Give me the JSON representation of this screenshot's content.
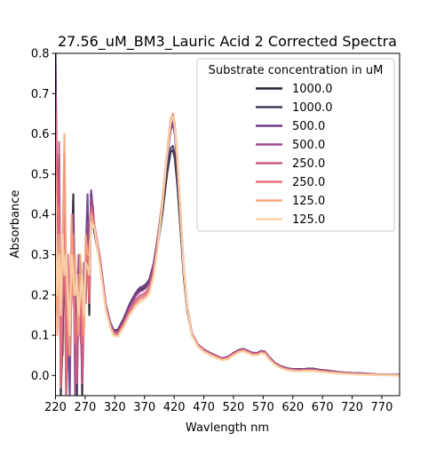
{
  "chart_data": {
    "type": "line",
    "title": "27.56_uM_BM3_Lauric Acid 2 Corrected Spectra",
    "xlabel": "Wavlength nm",
    "ylabel": "Absorbance",
    "xlim": [
      220,
      800
    ],
    "ylim": [
      -0.05,
      0.8
    ],
    "xticks": [
      "220",
      "270",
      "320",
      "370",
      "420",
      "470",
      "520",
      "570",
      "620",
      "670",
      "720",
      "770"
    ],
    "yticks": [
      "0.0",
      "0.1",
      "0.2",
      "0.3",
      "0.4",
      "0.5",
      "0.6",
      "0.7",
      "0.8"
    ],
    "grid": false,
    "legend": {
      "title": "Substrate concentration in uM",
      "placement": "upper-right"
    },
    "x": [
      285,
      295,
      305,
      312,
      318,
      325,
      335,
      345,
      355,
      362,
      368,
      373,
      378,
      385,
      392,
      400,
      408,
      414,
      418,
      421,
      425,
      430,
      436,
      442,
      450,
      460,
      470,
      480,
      490,
      500,
      510,
      520,
      530,
      537,
      545,
      552,
      560,
      567,
      573,
      580,
      590,
      600,
      610,
      620,
      630,
      640,
      648,
      655,
      665,
      680,
      700,
      720,
      740,
      760,
      780,
      800
    ],
    "series": [
      {
        "name": "1000.0",
        "color": "#231c2a",
        "values": [
          0.36,
          0.28,
          0.17,
          0.13,
          0.112,
          0.112,
          0.14,
          0.175,
          0.2,
          0.212,
          0.215,
          0.22,
          0.23,
          0.265,
          0.32,
          0.4,
          0.5,
          0.555,
          0.56,
          0.54,
          0.48,
          0.38,
          0.25,
          0.16,
          0.1,
          0.075,
          0.063,
          0.055,
          0.048,
          0.042,
          0.045,
          0.055,
          0.063,
          0.065,
          0.06,
          0.055,
          0.055,
          0.06,
          0.058,
          0.045,
          0.03,
          0.022,
          0.017,
          0.015,
          0.015,
          0.016,
          0.017,
          0.017,
          0.014,
          0.012,
          0.008,
          0.006,
          0.005,
          0.003,
          0.002,
          0.002
        ]
      },
      {
        "name": "1000.0",
        "color": "#463a5b",
        "values": [
          0.37,
          0.285,
          0.172,
          0.132,
          0.113,
          0.113,
          0.142,
          0.178,
          0.205,
          0.218,
          0.222,
          0.228,
          0.238,
          0.275,
          0.33,
          0.41,
          0.51,
          0.565,
          0.57,
          0.55,
          0.49,
          0.385,
          0.255,
          0.163,
          0.102,
          0.076,
          0.064,
          0.056,
          0.049,
          0.043,
          0.046,
          0.056,
          0.064,
          0.066,
          0.061,
          0.056,
          0.056,
          0.061,
          0.059,
          0.046,
          0.031,
          0.023,
          0.018,
          0.016,
          0.016,
          0.016,
          0.017,
          0.017,
          0.014,
          0.012,
          0.008,
          0.006,
          0.005,
          0.003,
          0.002,
          0.002
        ]
      },
      {
        "name": "500.0",
        "color": "#6a3b8c",
        "values": [
          0.375,
          0.29,
          0.175,
          0.133,
          0.112,
          0.11,
          0.138,
          0.175,
          0.203,
          0.216,
          0.22,
          0.226,
          0.236,
          0.275,
          0.34,
          0.43,
          0.54,
          0.61,
          0.625,
          0.6,
          0.53,
          0.41,
          0.265,
          0.168,
          0.104,
          0.077,
          0.065,
          0.057,
          0.05,
          0.043,
          0.046,
          0.056,
          0.064,
          0.066,
          0.061,
          0.056,
          0.056,
          0.061,
          0.059,
          0.046,
          0.031,
          0.023,
          0.018,
          0.016,
          0.015,
          0.016,
          0.016,
          0.016,
          0.014,
          0.012,
          0.008,
          0.006,
          0.005,
          0.003,
          0.002,
          0.002
        ]
      },
      {
        "name": "500.0",
        "color": "#9a4d8c",
        "values": [
          0.38,
          0.29,
          0.174,
          0.132,
          0.11,
          0.108,
          0.135,
          0.17,
          0.197,
          0.208,
          0.212,
          0.218,
          0.228,
          0.268,
          0.335,
          0.43,
          0.545,
          0.62,
          0.635,
          0.61,
          0.54,
          0.415,
          0.268,
          0.17,
          0.104,
          0.077,
          0.064,
          0.056,
          0.049,
          0.043,
          0.045,
          0.055,
          0.063,
          0.065,
          0.06,
          0.055,
          0.055,
          0.06,
          0.058,
          0.045,
          0.03,
          0.022,
          0.017,
          0.015,
          0.014,
          0.015,
          0.015,
          0.015,
          0.013,
          0.011,
          0.008,
          0.006,
          0.004,
          0.003,
          0.002,
          0.001
        ]
      },
      {
        "name": "250.0",
        "color": "#cc5d8a",
        "values": [
          0.38,
          0.285,
          0.17,
          0.128,
          0.106,
          0.104,
          0.13,
          0.163,
          0.188,
          0.198,
          0.202,
          0.208,
          0.218,
          0.258,
          0.328,
          0.43,
          0.55,
          0.63,
          0.645,
          0.62,
          0.545,
          0.42,
          0.27,
          0.17,
          0.103,
          0.076,
          0.063,
          0.055,
          0.048,
          0.042,
          0.044,
          0.054,
          0.062,
          0.064,
          0.059,
          0.054,
          0.054,
          0.059,
          0.057,
          0.044,
          0.029,
          0.021,
          0.016,
          0.014,
          0.013,
          0.014,
          0.014,
          0.014,
          0.012,
          0.01,
          0.007,
          0.005,
          0.004,
          0.003,
          0.002,
          0.001
        ]
      },
      {
        "name": "250.0",
        "color": "#e8717a",
        "values": [
          0.38,
          0.28,
          0.167,
          0.125,
          0.104,
          0.101,
          0.127,
          0.158,
          0.182,
          0.192,
          0.196,
          0.202,
          0.212,
          0.252,
          0.324,
          0.43,
          0.552,
          0.635,
          0.65,
          0.625,
          0.55,
          0.422,
          0.27,
          0.17,
          0.102,
          0.075,
          0.062,
          0.054,
          0.047,
          0.041,
          0.043,
          0.053,
          0.061,
          0.063,
          0.058,
          0.053,
          0.053,
          0.058,
          0.056,
          0.043,
          0.028,
          0.02,
          0.015,
          0.013,
          0.012,
          0.013,
          0.013,
          0.013,
          0.011,
          0.009,
          0.006,
          0.004,
          0.003,
          0.002,
          0.001,
          0.001
        ]
      },
      {
        "name": "125.0",
        "color": "#f4a77e",
        "values": [
          0.375,
          0.275,
          0.163,
          0.122,
          0.101,
          0.098,
          0.122,
          0.152,
          0.175,
          0.185,
          0.19,
          0.196,
          0.206,
          0.246,
          0.318,
          0.425,
          0.55,
          0.632,
          0.648,
          0.622,
          0.548,
          0.42,
          0.268,
          0.168,
          0.1,
          0.073,
          0.06,
          0.052,
          0.045,
          0.039,
          0.041,
          0.051,
          0.059,
          0.061,
          0.056,
          0.051,
          0.051,
          0.056,
          0.054,
          0.041,
          0.027,
          0.019,
          0.014,
          0.012,
          0.011,
          0.012,
          0.012,
          0.012,
          0.01,
          0.008,
          0.005,
          0.004,
          0.003,
          0.002,
          0.001,
          0.0
        ]
      },
      {
        "name": "125.0",
        "color": "#f8d5a8",
        "values": [
          0.372,
          0.272,
          0.16,
          0.12,
          0.099,
          0.096,
          0.12,
          0.15,
          0.172,
          0.182,
          0.187,
          0.193,
          0.203,
          0.243,
          0.315,
          0.422,
          0.547,
          0.628,
          0.644,
          0.618,
          0.545,
          0.417,
          0.266,
          0.166,
          0.099,
          0.072,
          0.059,
          0.051,
          0.044,
          0.038,
          0.04,
          0.05,
          0.058,
          0.06,
          0.055,
          0.05,
          0.05,
          0.055,
          0.053,
          0.04,
          0.026,
          0.018,
          0.013,
          0.011,
          0.01,
          0.011,
          0.011,
          0.011,
          0.009,
          0.007,
          0.005,
          0.003,
          0.002,
          0.001,
          0.001,
          0.0
        ]
      }
    ],
    "noisy_region": {
      "x": [
        220,
        223,
        226,
        229,
        232,
        235,
        238,
        241,
        244,
        247,
        250,
        253,
        256,
        259,
        262,
        265,
        268,
        271,
        274,
        277,
        280,
        283,
        285
      ],
      "series_values": [
        [
          0.8,
          0.3,
          0.55,
          -0.05,
          0.1,
          0.35,
          -0.05,
          0.2,
          0.05,
          0.27,
          0.45,
          0.1,
          -0.05,
          0.23,
          0.28,
          -0.05,
          0.2,
          0.25,
          0.35,
          0.15,
          0.45,
          0.4,
          0.36
        ],
        [
          0.75,
          0.25,
          0.48,
          0.05,
          0.25,
          0.4,
          -0.02,
          0.15,
          0.18,
          0.22,
          0.3,
          0.05,
          0.2,
          0.26,
          0.12,
          0.03,
          0.25,
          0.2,
          0.4,
          0.2,
          0.43,
          0.42,
          0.37
        ],
        [
          0.78,
          0.35,
          0.5,
          0.1,
          0.05,
          0.5,
          0.12,
          0.08,
          -0.05,
          0.3,
          0.28,
          0.2,
          0.08,
          0.18,
          0.27,
          0.1,
          0.15,
          0.3,
          0.45,
          0.25,
          0.46,
          0.41,
          0.375
        ],
        [
          0.6,
          0.2,
          0.45,
          0.0,
          0.3,
          0.55,
          0.0,
          0.25,
          0.1,
          0.2,
          0.4,
          -0.05,
          0.15,
          0.3,
          0.1,
          0.05,
          0.28,
          0.22,
          0.38,
          0.28,
          0.44,
          0.41,
          0.38
        ],
        [
          0.7,
          0.15,
          0.58,
          0.05,
          0.18,
          0.3,
          0.1,
          0.05,
          0.2,
          0.35,
          0.25,
          0.12,
          -0.02,
          0.25,
          0.2,
          -0.02,
          0.22,
          0.18,
          0.33,
          0.22,
          0.42,
          0.4,
          0.38
        ],
        [
          0.65,
          0.4,
          0.42,
          -0.03,
          0.22,
          0.45,
          -0.05,
          0.3,
          0.12,
          0.18,
          0.35,
          0.08,
          0.12,
          0.2,
          0.25,
          0.08,
          0.12,
          0.28,
          0.3,
          0.18,
          0.41,
          0.39,
          0.38
        ],
        [
          0.5,
          0.1,
          0.35,
          0.2,
          0.3,
          0.6,
          0.25,
          0.15,
          0.05,
          0.4,
          0.2,
          0.3,
          0.2,
          0.1,
          0.3,
          0.2,
          0.1,
          0.35,
          0.3,
          0.3,
          0.4,
          0.38,
          0.375
        ],
        [
          0.45,
          0.2,
          0.3,
          0.15,
          0.35,
          0.25,
          0.3,
          0.2,
          0.1,
          0.3,
          0.25,
          0.2,
          0.25,
          0.15,
          0.2,
          0.25,
          0.15,
          0.28,
          0.27,
          0.25,
          0.38,
          0.37,
          0.372
        ]
      ]
    }
  }
}
